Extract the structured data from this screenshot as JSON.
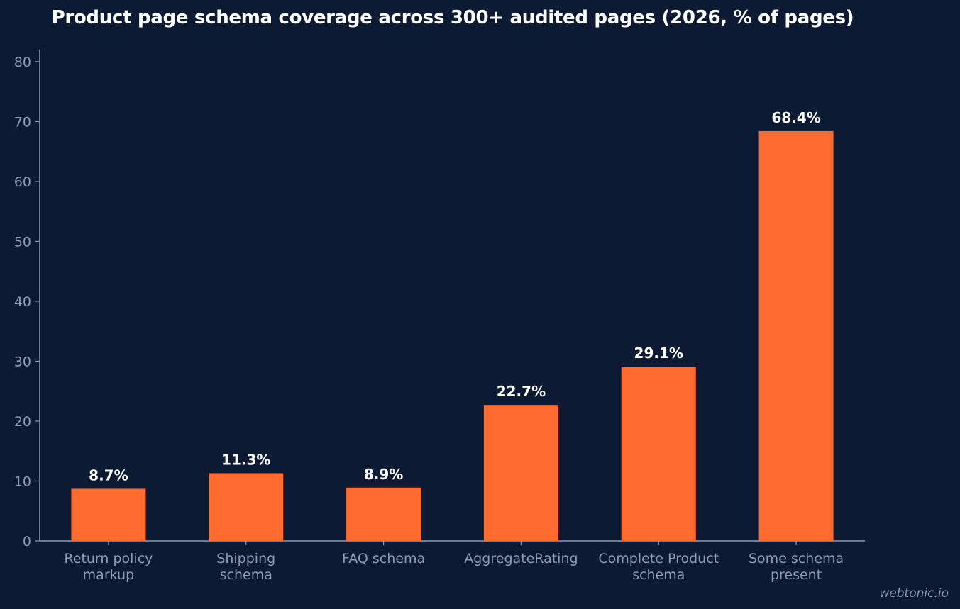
{
  "chart_data": {
    "type": "bar",
    "title": "Product page schema coverage across 300+ audited pages (2026, % of pages)",
    "categories": [
      [
        "Return policy",
        "markup"
      ],
      [
        "Shipping",
        "schema"
      ],
      [
        "FAQ schema"
      ],
      [
        "AggregateRating"
      ],
      [
        "Complete Product",
        "schema"
      ],
      [
        "Some schema",
        "present"
      ]
    ],
    "values": [
      8.7,
      11.3,
      8.9,
      22.7,
      29.1,
      68.4
    ],
    "data_labels": [
      "8.7%",
      "11.3%",
      "8.9%",
      "22.7%",
      "29.1%",
      "68.4%"
    ],
    "yticks": [
      "0",
      "10",
      "20",
      "30",
      "40",
      "50",
      "60",
      "70",
      "80"
    ],
    "ylim": [
      0,
      82
    ],
    "xlabel": "",
    "ylabel": "",
    "grid": false,
    "bar_color": "#ff6b2e",
    "background_color": "#0c1b33",
    "axis_color": "#8d9bb5"
  },
  "watermark": "webtonic.io"
}
